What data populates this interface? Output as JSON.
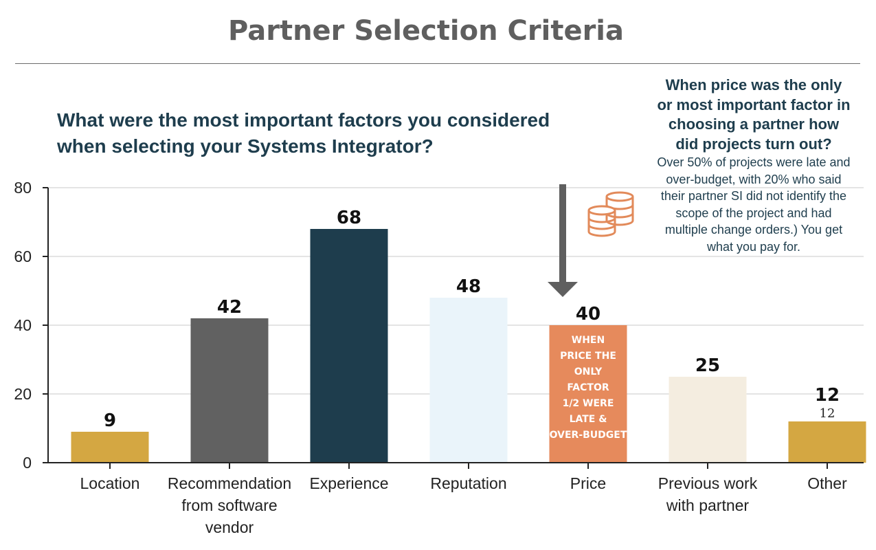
{
  "title": "Partner Selection Criteria",
  "question": "What were the most important factors you considered when selecting your Systems Integrator?",
  "callout": {
    "heading": "When price was the only or most important factor in choosing a partner how did projects turn out?",
    "body": "Over 50% of projects were late and over-budget, with 20% who said their partner SI did not identify the scope of the project and had multiple change orders.) You get what you pay for."
  },
  "icons": {
    "arrow": "down-arrow-icon",
    "coins": "coin-stack-icon"
  },
  "colors": {
    "arrow": "#5f5f5f",
    "coins": "#e28a5a",
    "value_labels": "#111111",
    "axis": "#222222",
    "grid": "#dcdcdc"
  },
  "chart_data": {
    "type": "bar",
    "categories": [
      "Location",
      "Recommendation from software vendor",
      "Experience",
      "Reputation",
      "Price",
      "Previous work with partner",
      "Other"
    ],
    "values": [
      9,
      42,
      68,
      48,
      40,
      25,
      12
    ],
    "bar_colors": [
      "#d4a742",
      "#616161",
      "#1e3d4d",
      "#eaf4fa",
      "#e68a5c",
      "#f4ede0",
      "#d4a742"
    ],
    "ylim": [
      0,
      80
    ],
    "yticks": [
      0,
      20,
      40,
      60,
      80
    ],
    "grid": true,
    "bar_annotations": [
      {
        "category": "Price",
        "text": "WHEN PRICE THE ONLY FACTOR 1/2 WERE LATE & OVER-BUDGET"
      }
    ],
    "extra_value_labels": [
      {
        "category": "Other",
        "text": "12"
      }
    ]
  }
}
